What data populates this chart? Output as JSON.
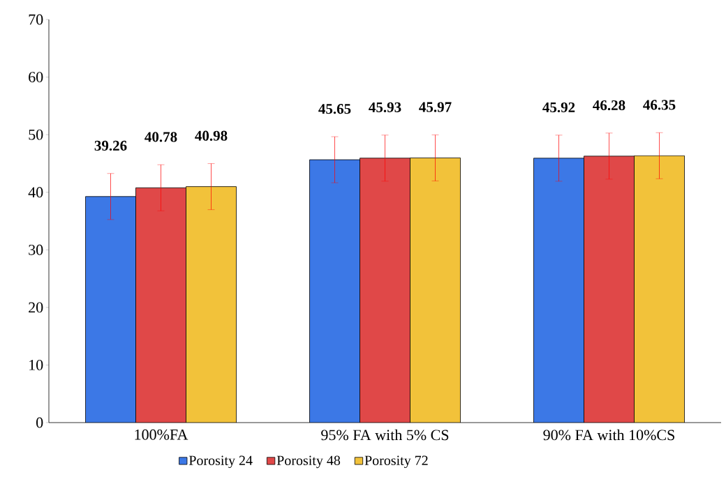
{
  "chart_data": {
    "type": "bar",
    "categories": [
      "100%FA",
      "95% FA with 5% CS",
      "90% FA with 10%CS"
    ],
    "series": [
      {
        "name": "Porosity 24",
        "color": "#3c78e6",
        "values": [
          39.26,
          45.65,
          45.92
        ],
        "errors": [
          4,
          4,
          4
        ]
      },
      {
        "name": "Porosity 48",
        "color": "#e04848",
        "values": [
          40.78,
          45.93,
          46.28
        ],
        "errors": [
          4,
          4,
          4
        ]
      },
      {
        "name": "Porosity 72",
        "color": "#f2c23a",
        "values": [
          40.98,
          45.97,
          46.35
        ],
        "errors": [
          4,
          4,
          4
        ]
      }
    ],
    "ylim": [
      0,
      70
    ],
    "yticks": [
      0,
      10,
      20,
      30,
      40,
      50,
      60,
      70
    ],
    "data_labels": true,
    "grid": false,
    "legend": "bottom"
  }
}
